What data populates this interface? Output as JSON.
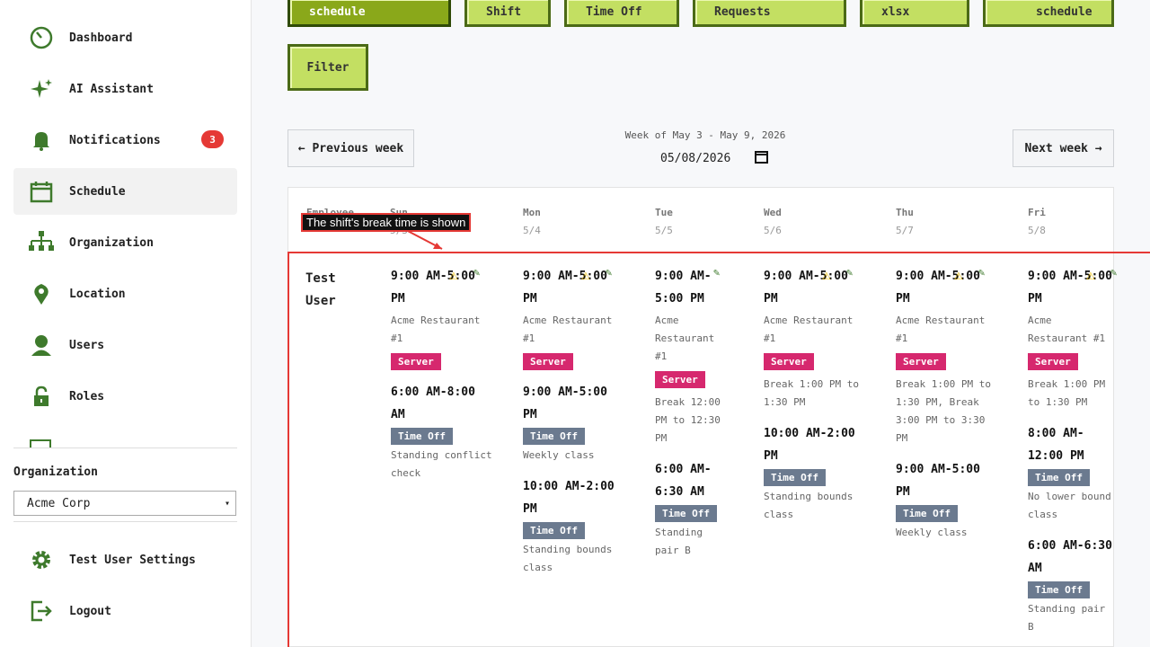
{
  "sidebar": {
    "items": [
      {
        "label": "Dashboard",
        "icon": "dashboard-icon"
      },
      {
        "label": "AI Assistant",
        "icon": "sparkle-icon"
      },
      {
        "label": "Notifications",
        "icon": "bell-icon",
        "badge": "3"
      },
      {
        "label": "Schedule",
        "icon": "calendar-icon",
        "active": true
      },
      {
        "label": "Organization",
        "icon": "org-chart-icon"
      },
      {
        "label": "Location",
        "icon": "map-pin-icon"
      },
      {
        "label": "Users",
        "icon": "user-icon"
      },
      {
        "label": "Roles",
        "icon": "lock-icon"
      }
    ],
    "org_label": "Organization",
    "org_value": "Acme Corp",
    "settings": "Test User Settings",
    "logout": "Logout"
  },
  "toolbar": {
    "buttons": [
      "schedule",
      "Shift",
      "Time Off",
      "Requests",
      "xlsx",
      "schedule"
    ],
    "filter": "Filter"
  },
  "week": {
    "prev": "← Previous week",
    "next": "Next week →",
    "title": "Week of May 3 - May 9, 2026",
    "date": "05/08/2026"
  },
  "table": {
    "headers": [
      {
        "day": "Employee",
        "date": ""
      },
      {
        "day": "Sun",
        "date": "5/3"
      },
      {
        "day": "Mon",
        "date": "5/4"
      },
      {
        "day": "Tue",
        "date": "5/5"
      },
      {
        "day": "Wed",
        "date": "5/6"
      },
      {
        "day": "Thu",
        "date": "5/7"
      },
      {
        "day": "Fri",
        "date": "5/8"
      }
    ],
    "employee": "Test User",
    "days": [
      {
        "shift": "9:00 AM-5:00 PM",
        "loc": "Acme Restaurant #1",
        "role": "Server",
        "brk": "",
        "timeoff": [
          {
            "time": "6:00 AM-8:00 AM",
            "note": "Standing conflict check"
          }
        ]
      },
      {
        "shift": "9:00 AM-5:00 PM",
        "loc": "Acme Restaurant #1",
        "role": "Server",
        "brk": "",
        "timeoff": [
          {
            "time": "9:00 AM-5:00 PM",
            "note": "Weekly class"
          },
          {
            "time": "10:00 AM-2:00 PM",
            "note": "Standing bounds class"
          }
        ]
      },
      {
        "shift": "9:00 AM-5:00 PM",
        "loc": "Acme Restaurant #1",
        "role": "Server",
        "brk": "Break 12:00 PM to 12:30 PM",
        "timeoff": [
          {
            "time": "6:00 AM-6:30 AM",
            "note": "Standing pair B"
          }
        ]
      },
      {
        "shift": "9:00 AM-5:00 PM",
        "loc": "Acme Restaurant #1",
        "role": "Server",
        "brk": "Break 1:00 PM to 1:30 PM",
        "timeoff": [
          {
            "time": "10:00 AM-2:00 PM",
            "note": "Standing bounds class"
          }
        ]
      },
      {
        "shift": "9:00 AM-5:00 PM",
        "loc": "Acme Restaurant #1",
        "role": "Server",
        "brk": "Break 1:00 PM to 1:30 PM, Break 3:00 PM to 3:30 PM",
        "timeoff": [
          {
            "time": "9:00 AM-5:00 PM",
            "note": "Weekly class"
          }
        ]
      },
      {
        "shift": "9:00 AM-5:00 PM",
        "loc": "Acme Restaurant #1",
        "role": "Server",
        "brk": "Break 1:00 PM to 1:30 PM",
        "timeoff": [
          {
            "time": "8:00 AM-12:00 PM",
            "note": "No lower bound class"
          },
          {
            "time": "6:00 AM-6:30 AM",
            "note": "Standing pair B"
          }
        ]
      }
    ],
    "timeoff_label": "Time Off"
  },
  "annotation": "The shift's break time is shown",
  "colors": {
    "accent": "#c3df62",
    "border": "#4b6a16",
    "role": "#d6286e",
    "timeoff": "#6b7a8f",
    "highlight": "#e53935"
  }
}
